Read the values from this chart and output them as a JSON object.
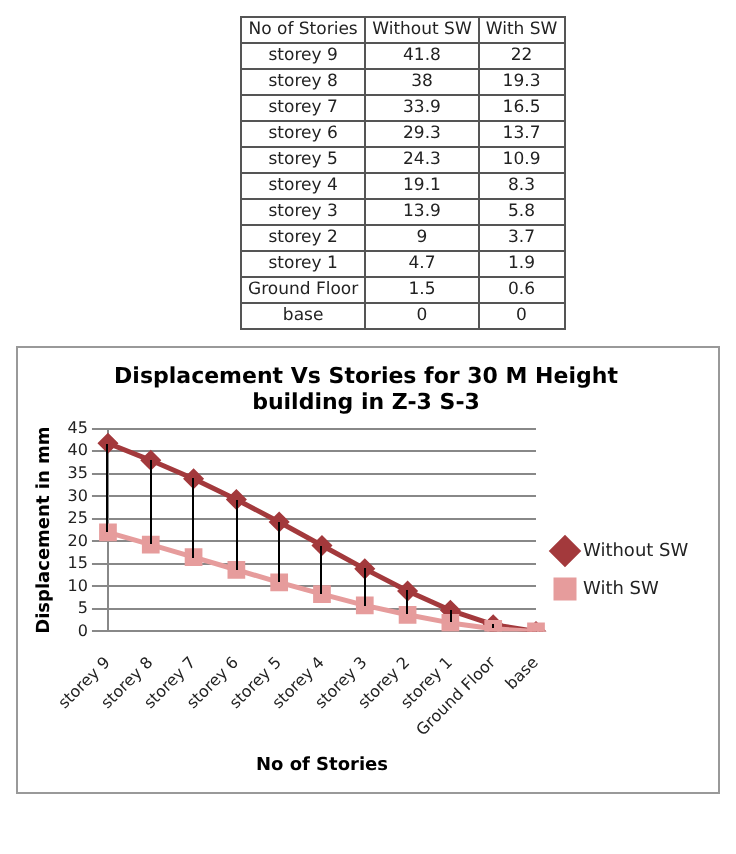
{
  "chart_data": [
    {
      "type": "other",
      "annotations": [
        "No of Stories",
        "Without SW",
        "With SW",
        "storey 9",
        "41.8",
        "22",
        "storey 8",
        "38",
        "19.3",
        "storey 7",
        "33.9",
        "16.5",
        "storey 6",
        "29.3",
        "13.7",
        "storey 5",
        "24.3",
        "10.9",
        "storey 4",
        "19.1",
        "8.3",
        "storey 3",
        "13.9",
        "5.8",
        "storey 2",
        "9",
        "3.7",
        "storey 1",
        "4.7",
        "1.9",
        "Ground Floor",
        "1.5",
        "0.6",
        "base",
        "0",
        "0"
      ]
    },
    {
      "type": "line",
      "title": "Displacement Vs Stories for 30 M Height building in Z-3 S-3",
      "xlabel": "No of Stories",
      "ylabel": "Displacement in mm",
      "categories": [
        "storey 9",
        "storey 8",
        "storey 7",
        "storey 6",
        "storey 5",
        "storey 4",
        "storey 3",
        "storey 2",
        "storey 1",
        "Ground Floor",
        "base"
      ],
      "series": [
        {
          "name": "Without SW",
          "color": "#a3393c",
          "marker": "diamond",
          "values": [
            41.8,
            38,
            33.9,
            29.3,
            24.3,
            19.1,
            13.9,
            9,
            4.7,
            1.5,
            0
          ]
        },
        {
          "name": "With SW",
          "color": "#e69c9c",
          "marker": "square",
          "values": [
            22,
            19.3,
            16.5,
            13.7,
            10.9,
            8.3,
            5.8,
            3.7,
            1.9,
            0.6,
            0
          ]
        }
      ],
      "ylim": [
        0,
        45
      ],
      "yticks": [
        0,
        5,
        10,
        15,
        20,
        25,
        30,
        35,
        40,
        45
      ],
      "grid": "y",
      "legend": "right"
    }
  ]
}
